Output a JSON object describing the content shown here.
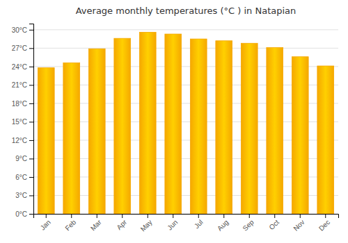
{
  "chart_data": {
    "type": "bar",
    "title": "Average monthly temperatures (°C ) in Natapian",
    "categories": [
      "Jan",
      "Feb",
      "Mar",
      "Apr",
      "May",
      "Jun",
      "Jul",
      "Aug",
      "Sep",
      "Oct",
      "Nov",
      "Dec"
    ],
    "values": [
      23.8,
      24.6,
      26.9,
      28.6,
      29.6,
      29.3,
      28.5,
      28.2,
      27.8,
      27.1,
      25.6,
      24.1
    ],
    "color": "#F5A800",
    "ylim": [
      0,
      31
    ],
    "yticks": [
      {
        "value": 0,
        "label": "0°C"
      },
      {
        "value": 3,
        "label": "3°C"
      },
      {
        "value": 6,
        "label": "6°C"
      },
      {
        "value": 9,
        "label": "9°C"
      },
      {
        "value": 12,
        "label": "12°C"
      },
      {
        "value": 15,
        "label": "15°C"
      },
      {
        "value": 18,
        "label": "18°C"
      },
      {
        "value": 21,
        "label": "21°C"
      },
      {
        "value": 24,
        "label": "24°C"
      },
      {
        "value": 27,
        "label": "27°C"
      },
      {
        "value": 30,
        "label": "30°C"
      }
    ],
    "grid": true
  }
}
